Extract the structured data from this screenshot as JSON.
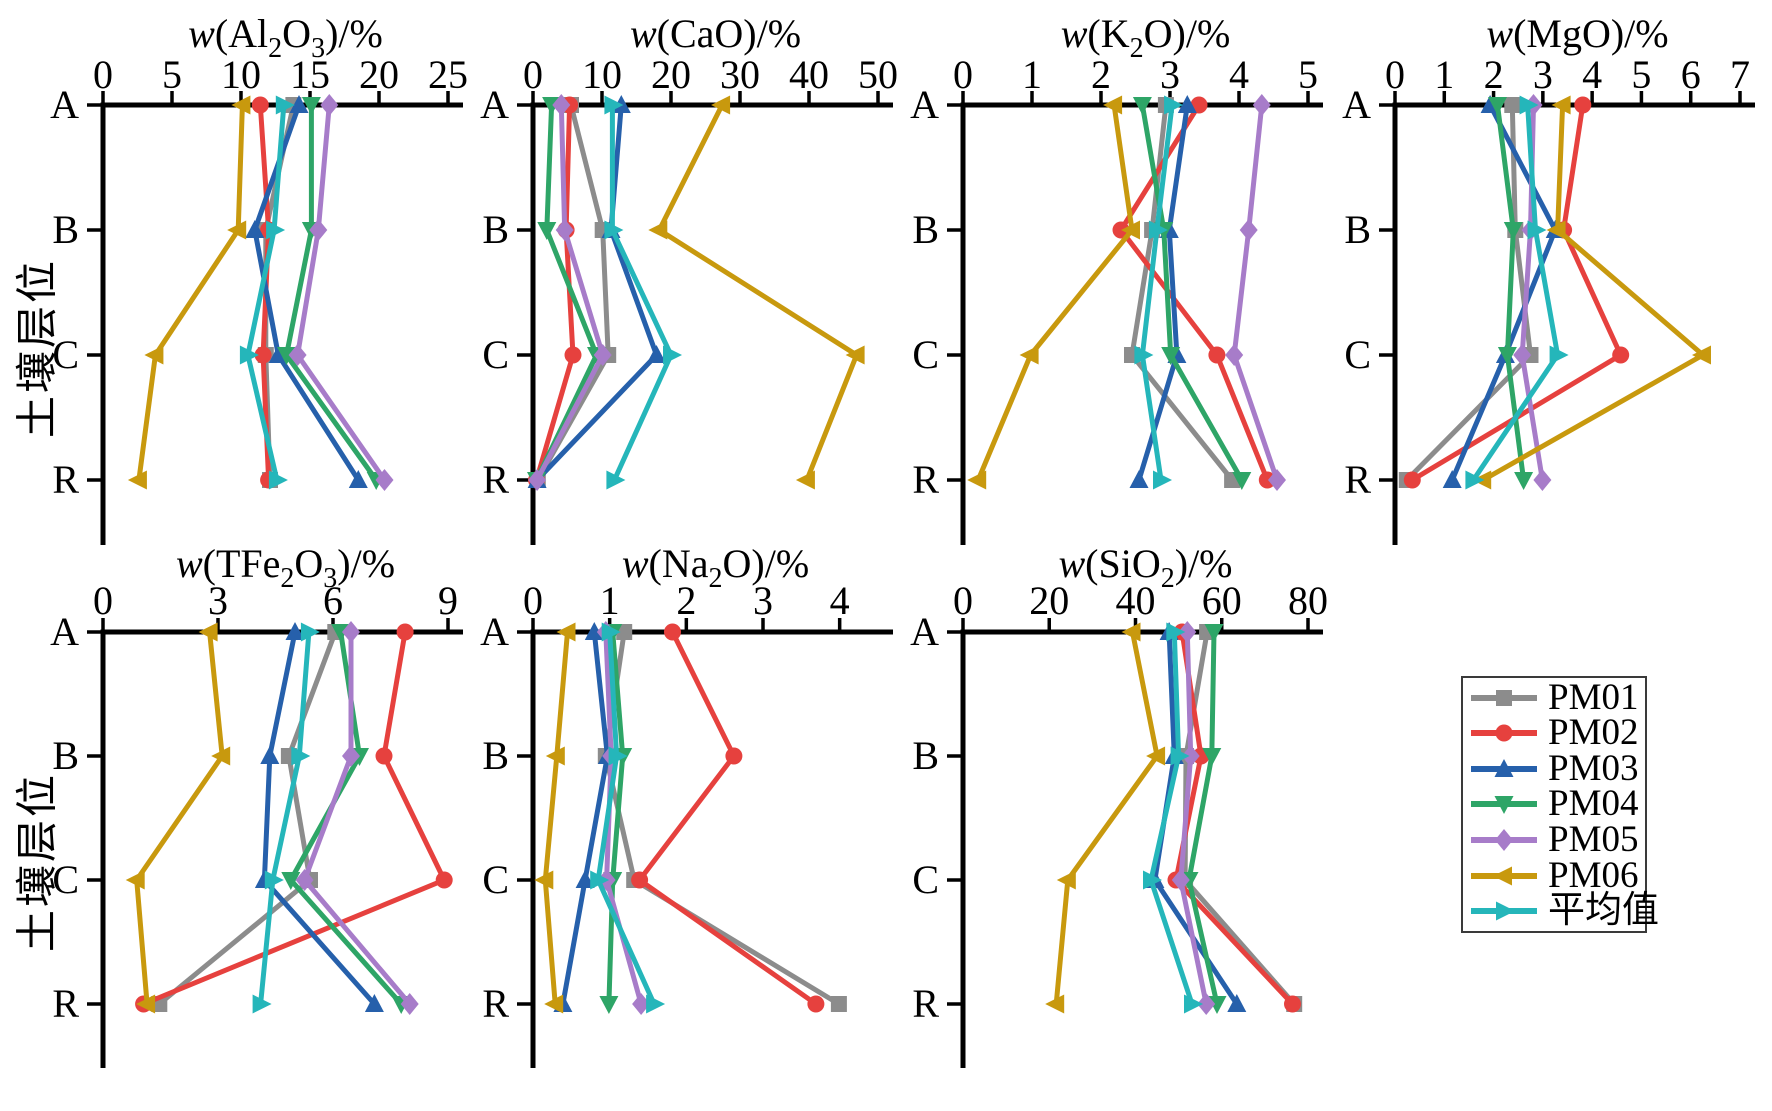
{
  "figure": {
    "y_axis_label": "土壤层位",
    "horizons": [
      "A",
      "B",
      "C",
      "R"
    ],
    "series_meta": [
      {
        "name": "PM01",
        "color": "#8c8c8c",
        "marker": "square"
      },
      {
        "name": "PM02",
        "color": "#e6413e",
        "marker": "circle"
      },
      {
        "name": "PM03",
        "color": "#2660ab",
        "marker": "triangle-up"
      },
      {
        "name": "PM04",
        "color": "#2ea567",
        "marker": "triangle-down"
      },
      {
        "name": "PM05",
        "color": "#a77cc9",
        "marker": "diamond"
      },
      {
        "name": "PM06",
        "color": "#c8990e",
        "marker": "triangle-left"
      },
      {
        "name": "平均值",
        "color": "#25b6ba",
        "marker": "triangle-right"
      }
    ]
  },
  "chart_data": [
    {
      "id": "Al2O3",
      "type": "line",
      "title_text": "w(Al2O3)/%",
      "title_segments": [
        {
          "t": "w",
          "i": true
        },
        {
          "t": "(Al"
        },
        {
          "t": "2",
          "sub": true
        },
        {
          "t": "O"
        },
        {
          "t": "3",
          "sub": true
        },
        {
          "t": ")/%"
        }
      ],
      "xlabel_position": "top",
      "ylabel": "土壤层位",
      "categories": [
        "A",
        "B",
        "C",
        "R"
      ],
      "xlim": [
        0,
        25
      ],
      "xticks": [
        0,
        5,
        10,
        15,
        20,
        25
      ],
      "series": [
        {
          "name": "PM01",
          "values": [
            13.8,
            11.8,
            11.8,
            12.1
          ]
        },
        {
          "name": "PM02",
          "values": [
            11.4,
            12.0,
            11.6,
            12.0
          ]
        },
        {
          "name": "PM03",
          "values": [
            14.2,
            11.0,
            12.7,
            18.5
          ]
        },
        {
          "name": "PM04",
          "values": [
            15.1,
            15.1,
            13.3,
            19.8
          ]
        },
        {
          "name": "PM05",
          "values": [
            16.4,
            15.6,
            14.1,
            20.4
          ]
        },
        {
          "name": "PM06",
          "values": [
            10.1,
            9.8,
            3.8,
            2.6
          ]
        },
        {
          "name": "平均值",
          "values": [
            13.1,
            12.4,
            10.5,
            12.6
          ]
        }
      ]
    },
    {
      "id": "CaO",
      "type": "line",
      "title_text": "w(CaO)/%",
      "title_segments": [
        {
          "t": "w",
          "i": true
        },
        {
          "t": "(CaO)/%"
        }
      ],
      "xlabel_position": "top",
      "categories": [
        "A",
        "B",
        "C",
        "R"
      ],
      "xlim": [
        0,
        50
      ],
      "xticks": [
        0,
        10,
        20,
        30,
        40,
        50
      ],
      "series": [
        {
          "name": "PM01",
          "values": [
            5.5,
            10.1,
            10.9,
            0.7
          ]
        },
        {
          "name": "PM02",
          "values": [
            5.3,
            4.8,
            5.8,
            0.5
          ]
        },
        {
          "name": "PM03",
          "values": [
            12.8,
            11.3,
            17.9,
            0.6
          ]
        },
        {
          "name": "PM04",
          "values": [
            2.7,
            2.0,
            9.2,
            0.5
          ]
        },
        {
          "name": "PM05",
          "values": [
            4.1,
            4.6,
            10.1,
            0.6
          ]
        },
        {
          "name": "PM06",
          "values": [
            27.4,
            18.3,
            46.9,
            39.7
          ]
        },
        {
          "name": "平均值",
          "values": [
            11.5,
            11.5,
            20.0,
            11.8
          ]
        }
      ]
    },
    {
      "id": "K2O",
      "type": "line",
      "title_text": "w(K2O)/%",
      "title_segments": [
        {
          "t": "w",
          "i": true
        },
        {
          "t": "(K"
        },
        {
          "t": "2",
          "sub": true
        },
        {
          "t": "O)/%"
        }
      ],
      "xlabel_position": "top",
      "categories": [
        "A",
        "B",
        "C",
        "R"
      ],
      "xlim": [
        0,
        5
      ],
      "xticks": [
        0,
        1,
        2,
        3,
        4,
        5
      ],
      "series": [
        {
          "name": "PM01",
          "values": [
            2.94,
            2.74,
            2.45,
            3.9
          ]
        },
        {
          "name": "PM02",
          "values": [
            3.42,
            2.29,
            3.68,
            4.41
          ]
        },
        {
          "name": "PM03",
          "values": [
            3.25,
            2.99,
            3.1,
            2.55
          ]
        },
        {
          "name": "PM04",
          "values": [
            2.6,
            2.91,
            3.01,
            4.04
          ]
        },
        {
          "name": "PM05",
          "values": [
            4.33,
            4.14,
            3.93,
            4.55
          ]
        },
        {
          "name": "PM06",
          "values": [
            2.19,
            2.45,
            0.98,
            0.22
          ]
        },
        {
          "name": "平均值",
          "values": [
            3.03,
            2.81,
            2.6,
            2.87
          ]
        }
      ]
    },
    {
      "id": "MgO",
      "type": "line",
      "title_text": "w(MgO)/%",
      "title_segments": [
        {
          "t": "w",
          "i": true
        },
        {
          "t": "(MgO)/%"
        }
      ],
      "xlabel_position": "top",
      "categories": [
        "A",
        "B",
        "C",
        "R"
      ],
      "xlim": [
        0,
        7
      ],
      "xticks": [
        0,
        1,
        2,
        3,
        4,
        5,
        6,
        7
      ],
      "series": [
        {
          "name": "PM01",
          "values": [
            2.38,
            2.44,
            2.75,
            0.24
          ]
        },
        {
          "name": "PM02",
          "values": [
            3.81,
            3.42,
            4.58,
            0.35
          ]
        },
        {
          "name": "PM03",
          "values": [
            1.93,
            3.25,
            2.24,
            1.16
          ]
        },
        {
          "name": "PM04",
          "values": [
            2.08,
            2.4,
            2.28,
            2.61
          ]
        },
        {
          "name": "PM05",
          "values": [
            2.81,
            2.75,
            2.58,
            2.99
          ]
        },
        {
          "name": "PM06",
          "values": [
            3.4,
            3.3,
            6.25,
            1.79
          ]
        },
        {
          "name": "平均值",
          "values": [
            2.69,
            2.85,
            3.3,
            1.59
          ]
        }
      ]
    },
    {
      "id": "TFe2O3",
      "type": "line",
      "title_text": "w(TFe2O3)/%",
      "title_segments": [
        {
          "t": "w",
          "i": true
        },
        {
          "t": "(TFe"
        },
        {
          "t": "2",
          "sub": true
        },
        {
          "t": "O"
        },
        {
          "t": "3",
          "sub": true
        },
        {
          "t": ")/%"
        }
      ],
      "xlabel_position": "top",
      "ylabel": "土壤层位",
      "categories": [
        "A",
        "B",
        "C",
        "R"
      ],
      "xlim": [
        0,
        9
      ],
      "xticks": [
        0,
        3,
        6,
        9
      ],
      "series": [
        {
          "name": "PM01",
          "values": [
            6.06,
            4.85,
            5.4,
            1.47
          ]
        },
        {
          "name": "PM02",
          "values": [
            7.88,
            7.33,
            8.9,
            1.06
          ]
        },
        {
          "name": "PM03",
          "values": [
            5.01,
            4.35,
            4.21,
            7.08
          ]
        },
        {
          "name": "PM04",
          "values": [
            6.2,
            6.69,
            4.9,
            7.78
          ]
        },
        {
          "name": "PM05",
          "values": [
            6.47,
            6.47,
            5.26,
            8.0
          ]
        },
        {
          "name": "PM06",
          "values": [
            2.78,
            3.11,
            0.88,
            1.15
          ]
        },
        {
          "name": "平均值",
          "values": [
            5.37,
            5.12,
            4.43,
            4.11
          ]
        }
      ]
    },
    {
      "id": "Na2O",
      "type": "line",
      "title_text": "w(Na2O)/%",
      "title_segments": [
        {
          "t": "w",
          "i": true
        },
        {
          "t": "(Na"
        },
        {
          "t": "2",
          "sub": true
        },
        {
          "t": "O)/%"
        }
      ],
      "xlabel_position": "top",
      "categories": [
        "A",
        "B",
        "C",
        "R"
      ],
      "xlim": [
        0,
        4.5
      ],
      "xticks": [
        0,
        1,
        2,
        3,
        4
      ],
      "series": [
        {
          "name": "PM01",
          "values": [
            1.19,
            0.95,
            1.32,
            3.99
          ]
        },
        {
          "name": "PM02",
          "values": [
            1.82,
            2.62,
            1.39,
            3.69
          ]
        },
        {
          "name": "PM03",
          "values": [
            0.8,
            0.97,
            0.68,
            0.39
          ]
        },
        {
          "name": "PM04",
          "values": [
            1.04,
            1.17,
            1.04,
            0.99
          ]
        },
        {
          "name": "PM05",
          "values": [
            0.95,
            1.02,
            0.96,
            1.41
          ]
        },
        {
          "name": "PM06",
          "values": [
            0.45,
            0.31,
            0.16,
            0.29
          ]
        },
        {
          "name": "平均值",
          "values": [
            1.0,
            1.09,
            0.85,
            1.58
          ]
        }
      ]
    },
    {
      "id": "SiO2",
      "type": "line",
      "title_text": "w(SiO2)/%",
      "title_segments": [
        {
          "t": "w",
          "i": true
        },
        {
          "t": "(SiO"
        },
        {
          "t": "2",
          "sub": true
        },
        {
          "t": ")/%"
        }
      ],
      "xlabel_position": "top",
      "categories": [
        "A",
        "B",
        "C",
        "R"
      ],
      "xlim": [
        0,
        80
      ],
      "xticks": [
        0,
        20,
        40,
        60,
        80
      ],
      "series": [
        {
          "name": "PM01",
          "values": [
            56.6,
            51.7,
            51.5,
            76.8
          ]
        },
        {
          "name": "PM02",
          "values": [
            50.8,
            55.2,
            49.4,
            76.4
          ]
        },
        {
          "name": "PM03",
          "values": [
            47.8,
            49.0,
            44.5,
            63.5
          ]
        },
        {
          "name": "PM04",
          "values": [
            58.2,
            57.7,
            52.4,
            58.9
          ]
        },
        {
          "name": "PM05",
          "values": [
            52.0,
            52.8,
            50.5,
            56.4
          ]
        },
        {
          "name": "PM06",
          "values": [
            39.3,
            45.0,
            24.3,
            21.6
          ]
        },
        {
          "name": "平均值",
          "values": [
            49.0,
            50.0,
            43.6,
            53.1
          ]
        }
      ]
    }
  ]
}
